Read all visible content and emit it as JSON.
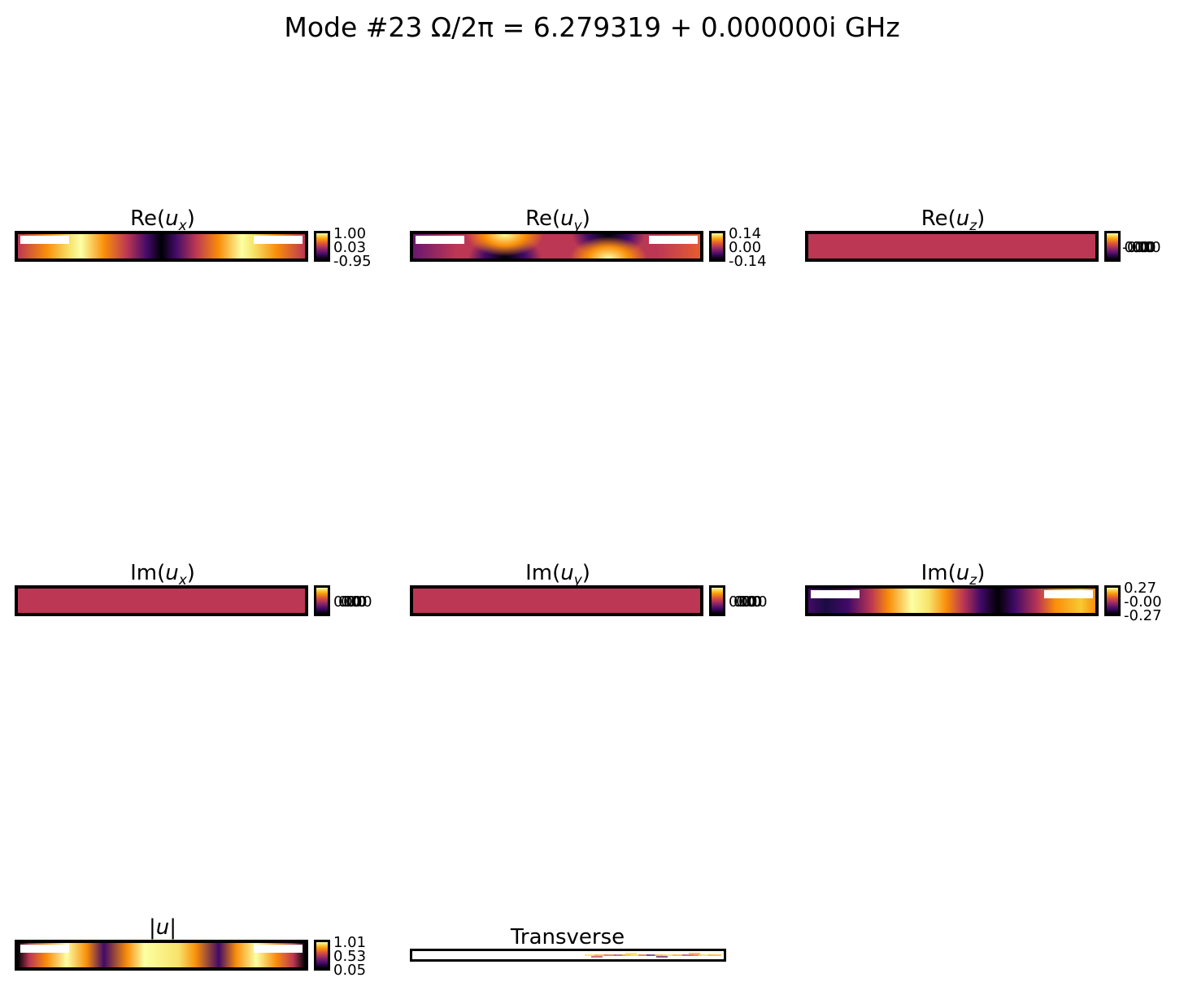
{
  "suptitle": "Mode #23   Ω/2π = 6.279319 + 0.000000i GHz",
  "colors": {
    "colormap": "inferno",
    "zero_field": "#bc3754",
    "frame": "#000000"
  },
  "chart_data": [
    {
      "type": "heatmap",
      "title": "Re(u_x)",
      "title_main": "Re(",
      "title_var": "u",
      "title_sub": "x",
      "title_end": ")",
      "colorbar_ticks": [
        "1.00",
        "0.03",
        "-0.95"
      ],
      "range": [
        -0.95,
        1.0
      ]
    },
    {
      "type": "heatmap",
      "title": "Re(u_y)",
      "title_main": "Re(",
      "title_var": "u",
      "title_sub": "y",
      "title_end": ")",
      "colorbar_ticks": [
        "0.14",
        "0.00",
        "-0.14"
      ],
      "range": [
        -0.14,
        0.14
      ]
    },
    {
      "type": "heatmap",
      "title": "Re(u_z)",
      "title_main": "Re(",
      "title_var": "u",
      "title_sub": "z",
      "title_end": ")",
      "colorbar_ticks": [
        "-0.000",
        "0.000",
        "0.000"
      ],
      "range": [
        0,
        0
      ]
    },
    {
      "type": "heatmap",
      "title": "Im(u_x)",
      "title_main": "Im(",
      "title_var": "u",
      "title_sub": "x",
      "title_end": ")",
      "colorbar_ticks": [
        "0.000",
        "0.000",
        "0.000"
      ],
      "range": [
        0,
        0
      ]
    },
    {
      "type": "heatmap",
      "title": "Im(u_y)",
      "title_main": "Im(",
      "title_var": "u",
      "title_sub": "y",
      "title_end": ")",
      "colorbar_ticks": [
        "0.000",
        "0.000",
        "0.000"
      ],
      "range": [
        0,
        0
      ]
    },
    {
      "type": "heatmap",
      "title": "Im(u_z)",
      "title_main": "Im(",
      "title_var": "u",
      "title_sub": "z",
      "title_end": ")",
      "colorbar_ticks": [
        "0.27",
        "-0.00",
        "-0.27"
      ],
      "range": [
        -0.27,
        0.27
      ]
    },
    {
      "type": "heatmap",
      "title": "|u|",
      "title_main": "|",
      "title_var": "u",
      "title_sub": "",
      "title_end": "|",
      "colorbar_ticks": [
        "1.01",
        "0.53",
        "0.05"
      ],
      "range": [
        0.05,
        1.01
      ]
    },
    {
      "type": "quiver",
      "title": "Transverse"
    }
  ]
}
